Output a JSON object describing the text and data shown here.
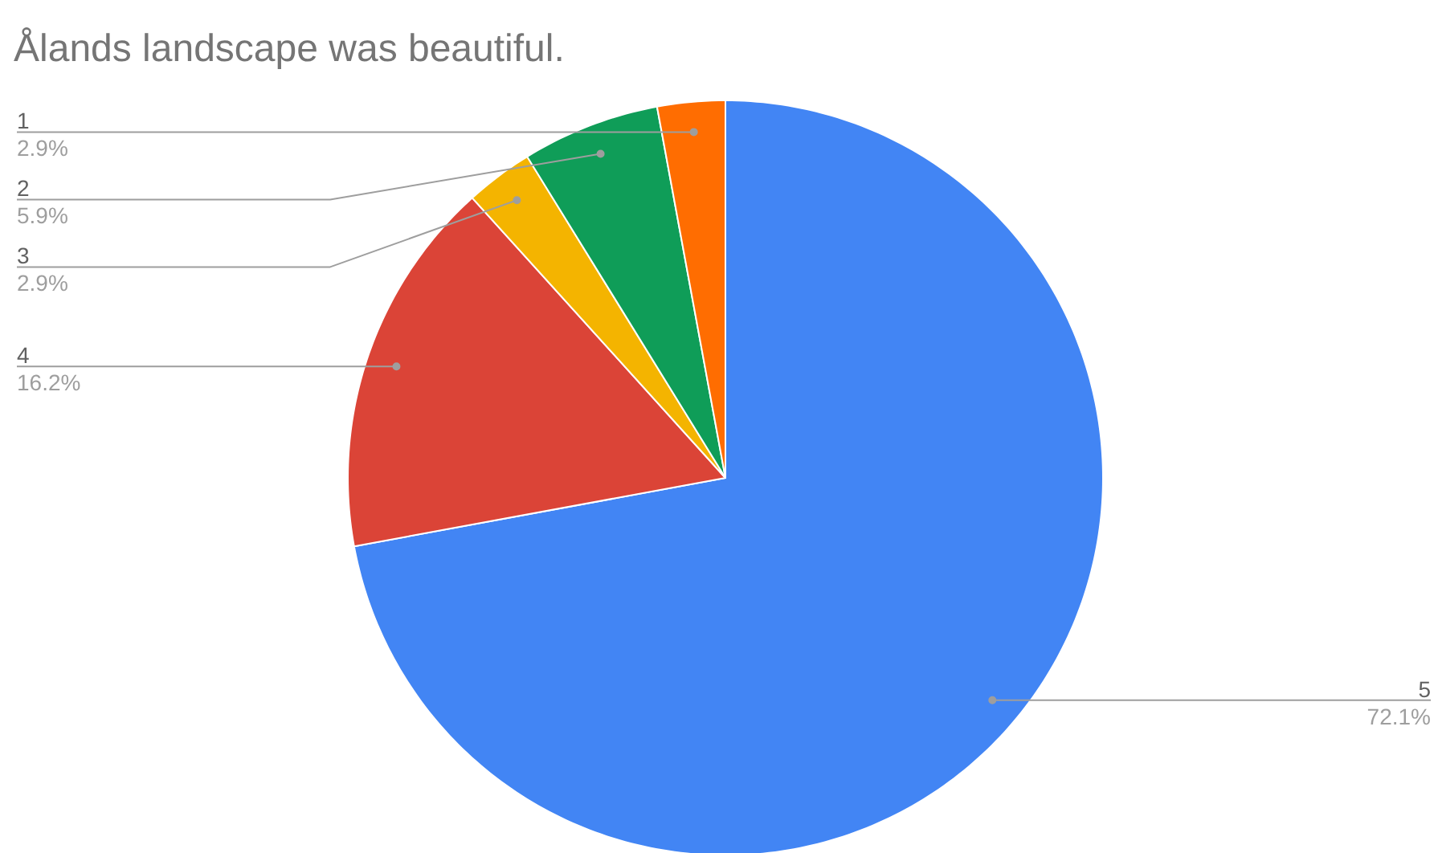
{
  "chart_data": {
    "type": "pie",
    "title": "Ålands landscape was beautiful.",
    "categories": [
      "5",
      "4",
      "3",
      "2",
      "1"
    ],
    "values": [
      72.1,
      16.2,
      2.9,
      5.9,
      2.9
    ],
    "value_labels": [
      "72.1%",
      "16.2%",
      "2.9%",
      "5.9%",
      "2.9%"
    ],
    "colors": [
      "#4285f4",
      "#db4437",
      "#f4b400",
      "#0f9d58",
      "#ff6d01"
    ]
  }
}
